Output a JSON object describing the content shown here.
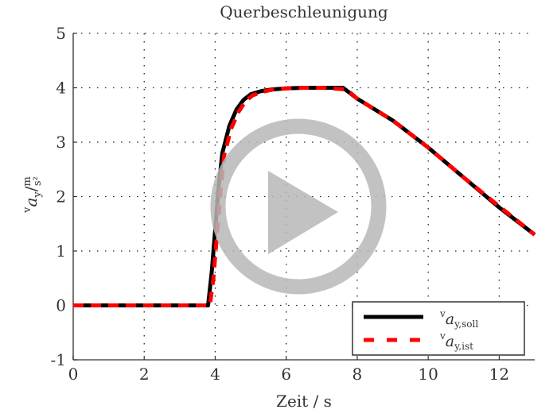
{
  "chart_data": {
    "type": "line",
    "title": "Querbeschleunigung",
    "xlabel": "Zeit / s",
    "ylabel": "v a_y / m/s²",
    "xlim": [
      0,
      13
    ],
    "ylim": [
      -1,
      5
    ],
    "xticks": [
      0,
      2,
      4,
      6,
      8,
      10,
      12
    ],
    "yticks": [
      -1,
      0,
      1,
      2,
      3,
      4,
      5
    ],
    "grid": true,
    "legend_position": "lower right",
    "series": [
      {
        "name": "v a_y,soll",
        "color": "#000000",
        "style": "solid",
        "x": [
          0,
          3.8,
          3.9,
          4.0,
          4.1,
          4.2,
          4.4,
          4.6,
          4.8,
          5.0,
          5.3,
          5.6,
          6.0,
          6.5,
          7.0,
          7.6,
          8.0,
          9.0,
          10.0,
          11.0,
          12.0,
          13.0
        ],
        "y": [
          0,
          0,
          0.6,
          1.4,
          2.2,
          2.8,
          3.3,
          3.6,
          3.78,
          3.88,
          3.94,
          3.97,
          3.99,
          4.0,
          4.0,
          4.0,
          3.8,
          3.4,
          2.9,
          2.35,
          1.8,
          1.3
        ]
      },
      {
        "name": "v a_y,ist",
        "color": "#ff0000",
        "style": "dashed",
        "x": [
          0,
          3.85,
          3.95,
          4.05,
          4.15,
          4.25,
          4.45,
          4.65,
          4.85,
          5.05,
          5.35,
          5.65,
          6.0,
          6.5,
          7.0,
          7.7,
          8.0,
          9.0,
          10.0,
          11.0,
          12.0,
          13.0
        ],
        "y": [
          0,
          0,
          0.5,
          1.3,
          2.1,
          2.75,
          3.25,
          3.55,
          3.75,
          3.86,
          3.93,
          3.97,
          3.99,
          4.0,
          4.0,
          3.97,
          3.8,
          3.4,
          2.9,
          2.35,
          1.82,
          1.3
        ]
      }
    ]
  },
  "overlay": {
    "play_button": "play-icon"
  },
  "legend": {
    "soll_sub": "y,soll",
    "ist_sub": "y,ist",
    "prefix": "v",
    "symbol": "a"
  },
  "axes_text": {
    "ylabel_prefix": "v",
    "ylabel_symbol": "a",
    "ylabel_sub": "y",
    "ylabel_unit_num": "m",
    "ylabel_unit_den": "s²",
    "slash": "/"
  }
}
